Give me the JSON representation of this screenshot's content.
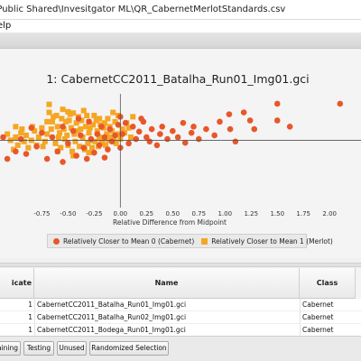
{
  "window": {
    "title": "\\Public Shared\\Invesitgator ML\\QR_CabernetMerlotStandards.csv"
  },
  "menu": {
    "help_label": "elp"
  },
  "chart_data": {
    "type": "scatter",
    "title": "1: CabernetCC2011_Batalha_Run01_Img01.gci",
    "xlabel": "Relative Difference from Midpoint",
    "ylabel": "",
    "xlim": [
      -1.15,
      2.3
    ],
    "ylim": [
      -1.0,
      0.75
    ],
    "x_ticks": [
      "-0.75",
      "-0.50",
      "-0.25",
      "0.00",
      "0.25",
      "0.50",
      "0.75",
      "1.00",
      "1.25",
      "1.50",
      "1.75",
      "2.00"
    ],
    "grid": false,
    "legend_position": "bottom",
    "series": [
      {
        "name": "Relatively Closer to Mean 0 (Cabernet)",
        "marker": "circle",
        "color": "#e8572a",
        "points": [
          [
            2.1,
            0.59
          ],
          [
            1.5,
            0.59
          ],
          [
            1.18,
            0.45
          ],
          [
            1.04,
            0.42
          ],
          [
            1.24,
            0.32
          ],
          [
            1.5,
            0.32
          ],
          [
            1.62,
            0.22
          ],
          [
            0.95,
            0.3
          ],
          [
            0.82,
            0.18
          ],
          [
            0.7,
            0.22
          ],
          [
            0.6,
            0.28
          ],
          [
            0.55,
            0.05
          ],
          [
            0.5,
            0.15
          ],
          [
            0.45,
            0.02
          ],
          [
            0.4,
            0.22
          ],
          [
            0.38,
            0.1
          ],
          [
            0.3,
            0.18
          ],
          [
            0.25,
            0.05
          ],
          [
            0.22,
            0.3
          ],
          [
            0.18,
            0.14
          ],
          [
            0.15,
            0.02
          ],
          [
            0.12,
            0.22
          ],
          [
            0.08,
            -0.05
          ],
          [
            0.05,
            0.28
          ],
          [
            0.02,
            0.1
          ],
          [
            0.0,
            -0.12
          ],
          [
            -0.02,
            0.25
          ],
          [
            -0.05,
            0.08
          ],
          [
            -0.08,
            -0.02
          ],
          [
            -0.1,
            0.18
          ],
          [
            -0.12,
            -0.15
          ],
          [
            -0.15,
            0.05
          ],
          [
            -0.18,
            0.22
          ],
          [
            -0.2,
            -0.08
          ],
          [
            -0.22,
            0.1
          ],
          [
            -0.25,
            -0.2
          ],
          [
            -0.28,
            0.02
          ],
          [
            -0.3,
            0.3
          ],
          [
            -0.35,
            -0.12
          ],
          [
            -0.38,
            0.08
          ],
          [
            -0.42,
            -0.25
          ],
          [
            -0.45,
            0.15
          ],
          [
            -0.5,
            -0.05
          ],
          [
            -0.55,
            0.22
          ],
          [
            -0.6,
            -0.18
          ],
          [
            -0.65,
            0.05
          ],
          [
            -0.7,
            -0.3
          ],
          [
            -0.75,
            0.12
          ],
          [
            -0.8,
            -0.1
          ],
          [
            -0.85,
            0.2
          ],
          [
            -0.9,
            -0.22
          ],
          [
            -0.95,
            0.02
          ],
          [
            -1.0,
            -0.18
          ],
          [
            -1.08,
            -0.3
          ],
          [
            -1.12,
            0.05
          ],
          [
            1.05,
            0.18
          ],
          [
            1.1,
            -0.02
          ],
          [
            1.28,
            0.18
          ],
          [
            0.9,
            0.08
          ],
          [
            0.75,
            0.02
          ],
          [
            0.68,
            0.12
          ],
          [
            0.62,
            -0.04
          ],
          [
            0.35,
            -0.08
          ],
          [
            0.28,
            -0.02
          ],
          [
            0.2,
            0.35
          ],
          [
            -0.55,
            -0.35
          ],
          [
            -0.32,
            -0.3
          ],
          [
            -0.15,
            -0.28
          ],
          [
            0.0,
            0.38
          ],
          [
            -0.4,
            0.35
          ]
        ]
      },
      {
        "name": "Relatively Closer to Mean 1 (Merlot)",
        "marker": "square",
        "color": "#f5a623",
        "points": [
          [
            -0.68,
            0.45
          ],
          [
            -0.55,
            0.5
          ],
          [
            -0.48,
            0.42
          ],
          [
            -0.4,
            0.38
          ],
          [
            -0.35,
            0.48
          ],
          [
            -0.3,
            0.3
          ],
          [
            -0.25,
            0.4
          ],
          [
            -0.2,
            0.35
          ],
          [
            -0.15,
            0.28
          ],
          [
            -0.1,
            0.22
          ],
          [
            -0.05,
            0.3
          ],
          [
            0.02,
            0.18
          ],
          [
            -0.65,
            0.3
          ],
          [
            -0.6,
            0.22
          ],
          [
            -0.58,
            0.12
          ],
          [
            -0.52,
            0.3
          ],
          [
            -0.47,
            0.2
          ],
          [
            -0.44,
            0.1
          ],
          [
            -0.42,
            0.28
          ],
          [
            -0.38,
            0.18
          ],
          [
            -0.36,
            0.05
          ],
          [
            -0.33,
            0.22
          ],
          [
            -0.3,
            0.12
          ],
          [
            -0.28,
            0.0
          ],
          [
            -0.26,
            0.25
          ],
          [
            -0.22,
            0.15
          ],
          [
            -0.2,
            0.05
          ],
          [
            -0.18,
            -0.05
          ],
          [
            -0.16,
            0.2
          ],
          [
            -0.13,
            0.1
          ],
          [
            -0.11,
            0.0
          ],
          [
            -0.08,
            0.15
          ],
          [
            -0.06,
            0.05
          ],
          [
            -0.04,
            -0.05
          ],
          [
            -0.02,
            0.1
          ],
          [
            0.0,
            0.02
          ],
          [
            -0.7,
            0.1
          ],
          [
            -0.72,
            -0.02
          ],
          [
            -0.75,
            0.2
          ],
          [
            -0.78,
            0.05
          ],
          [
            -0.8,
            -0.08
          ],
          [
            -0.82,
            0.15
          ],
          [
            -0.85,
            0.0
          ],
          [
            -0.88,
            -0.12
          ],
          [
            -0.9,
            0.08
          ],
          [
            -0.92,
            -0.02
          ],
          [
            -0.95,
            0.12
          ],
          [
            -0.98,
            -0.08
          ],
          [
            -1.0,
            0.05
          ],
          [
            -1.02,
            -0.15
          ],
          [
            -1.05,
            0.0
          ],
          [
            -1.08,
            0.1
          ],
          [
            -0.62,
            -0.05
          ],
          [
            -0.57,
            -0.12
          ],
          [
            -0.53,
            0.02
          ],
          [
            -0.5,
            -0.08
          ],
          [
            -0.46,
            -0.18
          ],
          [
            -0.43,
            -0.02
          ],
          [
            -0.39,
            -0.1
          ],
          [
            -0.34,
            -0.15
          ],
          [
            -0.31,
            -0.05
          ],
          [
            -0.27,
            -0.12
          ],
          [
            -0.24,
            -0.02
          ],
          [
            -0.21,
            -0.1
          ],
          [
            -0.17,
            0.0
          ],
          [
            -0.14,
            -0.08
          ],
          [
            -0.12,
            0.35
          ],
          [
            -0.64,
            0.38
          ],
          [
            -0.56,
            0.35
          ],
          [
            -0.49,
            0.32
          ],
          [
            -0.45,
            0.44
          ],
          [
            -0.37,
            0.32
          ],
          [
            -0.32,
            0.4
          ],
          [
            -0.23,
            0.32
          ],
          [
            -0.7,
            0.3
          ],
          [
            -0.66,
            0.18
          ],
          [
            -0.61,
            0.4
          ],
          [
            -0.59,
            0.05
          ],
          [
            -0.54,
            0.18
          ],
          [
            -0.51,
            0.08
          ],
          [
            -0.41,
            0.15
          ],
          [
            -0.29,
            0.2
          ],
          [
            -0.19,
            0.25
          ],
          [
            -0.09,
            0.05
          ],
          [
            0.04,
            0.12
          ],
          [
            0.06,
            0.28
          ],
          [
            -0.74,
            -0.1
          ],
          [
            -0.84,
            0.22
          ],
          [
            -0.94,
            0.18
          ],
          [
            -1.0,
            0.22
          ],
          [
            -0.3,
            -0.2
          ],
          [
            -0.45,
            -0.25
          ],
          [
            -0.6,
            -0.18
          ],
          [
            0.1,
            0.05
          ],
          [
            0.08,
            0.2
          ],
          [
            0.12,
            0.38
          ],
          [
            -0.5,
            0.46
          ],
          [
            -0.02,
            0.4
          ],
          [
            -0.07,
            0.45
          ],
          [
            -0.68,
            0.58
          ]
        ]
      }
    ]
  },
  "table": {
    "headers": {
      "replicate": "icate",
      "name": "Name",
      "class": "Class"
    },
    "rows": [
      {
        "replicate": "1",
        "name": "CabernetCC2011_Batalha_Run01_Img01.gci",
        "class": "Cabernet"
      },
      {
        "replicate": "1",
        "name": "CabernetCC2011_Batalha_Run02_Img01.gci",
        "class": "Cabernet"
      },
      {
        "replicate": "1",
        "name": "CabernetCC2011_Bodega_Run01_Img01.gci",
        "class": "Cabernet"
      }
    ]
  },
  "buttons": {
    "training": "aining",
    "testing": "Testing",
    "unused": "Unused",
    "randomized": "Randomized Selection"
  }
}
